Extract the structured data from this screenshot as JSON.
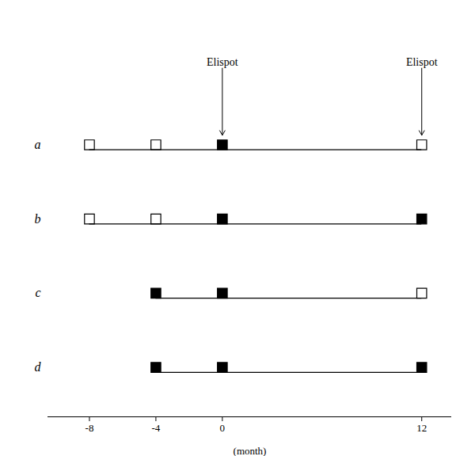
{
  "chart_data": {
    "type": "timeline",
    "x_label": "(month)",
    "categories": [
      "a",
      "b",
      "c",
      "d"
    ],
    "rows": [
      {
        "category": "a",
        "x": [
          -8,
          -4,
          0,
          12
        ],
        "filled": [
          false,
          false,
          true,
          false
        ],
        "line": [
          -8,
          12
        ]
      },
      {
        "category": "b",
        "x": [
          -8,
          -4,
          0,
          12
        ],
        "filled": [
          false,
          false,
          true,
          true
        ],
        "line": [
          -8,
          12
        ]
      },
      {
        "category": "c",
        "x": [
          -4,
          0,
          12
        ],
        "filled": [
          true,
          true,
          false
        ],
        "line": [
          -4,
          12
        ]
      },
      {
        "category": "d",
        "x": [
          -4,
          0,
          12
        ],
        "filled": [
          true,
          true,
          true
        ],
        "line": [
          -4,
          12
        ]
      }
    ],
    "annotations": [
      {
        "text": "Elispot",
        "x": 0,
        "category": "a"
      },
      {
        "text": "Elispot",
        "x": 12,
        "category": "a"
      }
    ],
    "xlim": [
      -10.5,
      13.8
    ],
    "xticks": [
      -8,
      -4,
      0,
      12
    ],
    "marker": "square",
    "color": "#000000",
    "grid": false
  }
}
